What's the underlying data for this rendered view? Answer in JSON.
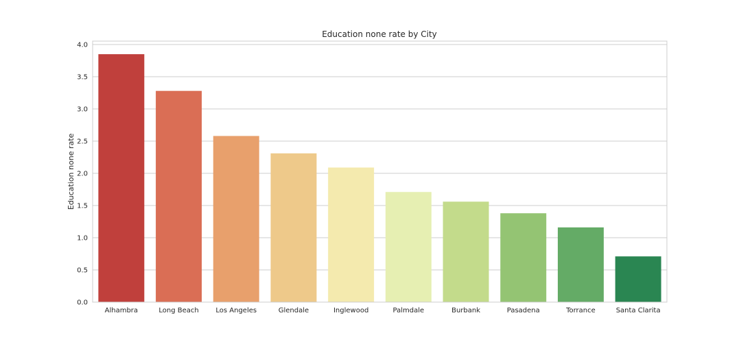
{
  "chart_data": {
    "type": "bar",
    "title": "Education none rate by City",
    "xlabel": "",
    "ylabel": "Education none rate",
    "categories": [
      "Alhambra",
      "Long Beach",
      "Los Angeles",
      "Glendale",
      "Inglewood",
      "Palmdale",
      "Burbank",
      "Pasadena",
      "Torrance",
      "Santa Clarita"
    ],
    "values": [
      3.85,
      3.28,
      2.58,
      2.31,
      2.09,
      1.71,
      1.56,
      1.38,
      1.16,
      0.71
    ],
    "colors": [
      "#c0403c",
      "#da6e55",
      "#e8a06c",
      "#eec98a",
      "#f4eaae",
      "#e6efb2",
      "#c3db8b",
      "#94c473",
      "#64ab66",
      "#2a8652"
    ],
    "ylim": [
      0,
      4.0
    ],
    "yticks": [
      "0.0",
      "0.5",
      "1.0",
      "1.5",
      "2.0",
      "2.5",
      "3.0",
      "3.5",
      "4.0"
    ],
    "grid": true,
    "legend": "none"
  }
}
